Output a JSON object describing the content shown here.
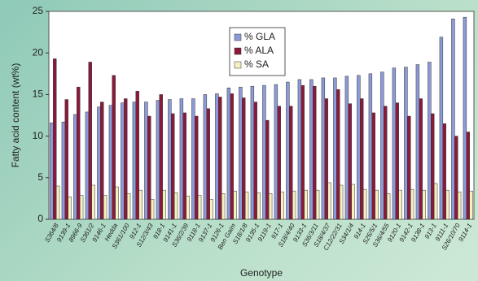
{
  "chart_data": {
    "type": "bar",
    "y_label": "Fatty acid content (wt%)",
    "x_label": "Genotype",
    "categories": [
      "S364/8",
      "9139-1",
      "8966-9",
      "S361/2",
      "9146-1",
      "Hedda",
      "S361/100",
      "912-1",
      "S12/3/43",
      "918-1",
      "9141-1",
      "S36/2/39",
      "9118-1",
      "9137-1",
      "9126-1",
      "Ben Gaim",
      "S18/1/8",
      "9135-1",
      "9119-1",
      "917-1",
      "S18/4/40",
      "9133-1",
      "S36/3/11",
      "S18/4/37",
      "C12/22/31",
      "S34/1/4",
      "914-1",
      "S26/5/1",
      "S36/4/55",
      "9120-1",
      "9142-1",
      "9138-1",
      "913-1",
      "9111-1",
      "S26/10/70",
      "9114-1"
    ],
    "series": [
      {
        "name": "% GLA",
        "color": "#8c9bd8",
        "values": [
          11.6,
          11.7,
          12.6,
          12.9,
          13.5,
          13.7,
          14.0,
          14.1,
          14.1,
          14.3,
          14.4,
          14.5,
          14.5,
          15.0,
          15.1,
          15.8,
          15.9,
          16.0,
          16.1,
          16.2,
          16.5,
          16.8,
          16.8,
          17.0,
          17.0,
          17.2,
          17.3,
          17.5,
          17.7,
          18.2,
          18.3,
          18.6,
          18.9,
          21.9,
          24.1,
          24.3
        ]
      },
      {
        "name": "% ALA",
        "color": "#8b1a3a",
        "values": [
          19.3,
          14.4,
          15.9,
          18.9,
          14.1,
          17.3,
          14.5,
          15.4,
          12.4,
          15.0,
          12.7,
          12.8,
          12.4,
          13.3,
          14.7,
          15.1,
          14.6,
          14.1,
          11.9,
          13.6,
          13.6,
          16.1,
          16.0,
          14.5,
          15.6,
          13.9,
          14.5,
          12.8,
          13.6,
          14.0,
          12.4,
          14.5,
          12.7,
          11.5,
          10.0,
          10.5
        ]
      },
      {
        "name": "% SA",
        "color": "#f5f0c0",
        "values": [
          4.0,
          2.7,
          2.9,
          4.1,
          2.9,
          3.9,
          3.1,
          3.5,
          2.4,
          3.5,
          3.2,
          2.8,
          2.9,
          2.4,
          3.1,
          3.4,
          3.3,
          3.2,
          3.1,
          3.3,
          3.4,
          3.5,
          3.5,
          4.4,
          4.1,
          4.2,
          3.6,
          3.5,
          3.1,
          3.5,
          3.6,
          3.5,
          4.3,
          3.5,
          3.3,
          3.4
        ]
      }
    ],
    "ylim": [
      0,
      25
    ],
    "yticks": [
      0,
      5,
      10,
      15,
      20,
      25
    ],
    "legend": "upper-center"
  }
}
